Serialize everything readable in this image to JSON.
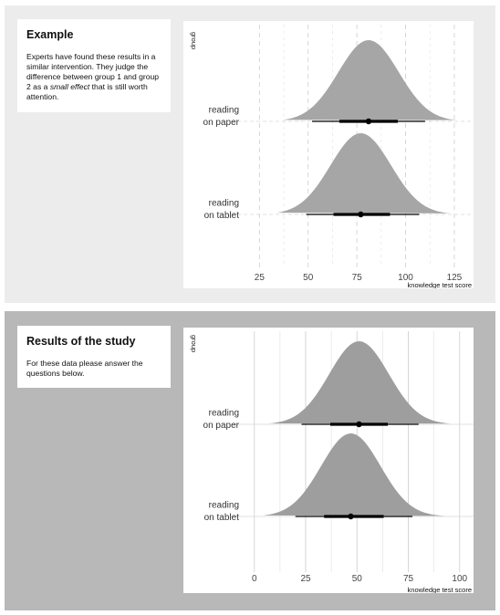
{
  "example": {
    "title": "Example",
    "text_before": "Experts have found these results in a similar intervention. They judge the difference between group 1 and group 2 as a ",
    "text_emph": "small effect",
    "text_after": " that is still worth attention."
  },
  "results": {
    "title": "Results of the study",
    "text": "For these data please answer the questions below."
  },
  "colors": {
    "example_panel": "#ececec",
    "results_panel": "#b8b8b8",
    "density_example": "#a6a6a6",
    "density_results": "#9e9e9e"
  },
  "chart_data": [
    {
      "type": "halfeye",
      "ylabel": "group",
      "xlabel": "knowledge test score",
      "xlim": [
        15,
        133
      ],
      "xticks": [
        25,
        50,
        75,
        100,
        125
      ],
      "groups": [
        {
          "label": [
            "reading",
            "on paper"
          ],
          "mean": 81,
          "sd": 15.5,
          "range": [
            37,
            126
          ],
          "interval_66": [
            66,
            96
          ],
          "interval_95": [
            52,
            110
          ]
        },
        {
          "label": [
            "reading",
            "on tablet"
          ],
          "mean": 77,
          "sd": 15.5,
          "range": [
            34,
            123
          ],
          "interval_66": [
            63,
            92
          ],
          "interval_95": [
            49,
            107
          ]
        }
      ]
    },
    {
      "type": "halfeye",
      "ylabel": "group",
      "xlabel": "knowledge test score",
      "xlim": [
        -7,
        105
      ],
      "xticks": [
        0,
        25,
        50,
        75,
        100
      ],
      "groups": [
        {
          "label": [
            "reading",
            "on paper"
          ],
          "mean": 51,
          "sd": 14.5,
          "range": [
            7,
            96
          ],
          "interval_66": [
            37,
            65
          ],
          "interval_95": [
            23,
            80
          ]
        },
        {
          "label": [
            "reading",
            "on tablet"
          ],
          "mean": 47,
          "sd": 14.5,
          "range": [
            4,
            93
          ],
          "interval_66": [
            34,
            63
          ],
          "interval_95": [
            20,
            77
          ]
        }
      ]
    }
  ]
}
